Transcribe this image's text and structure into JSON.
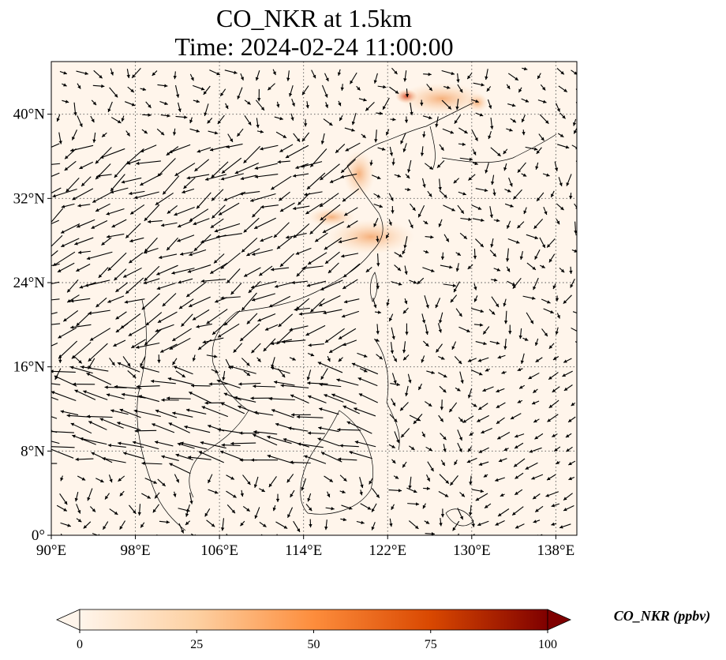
{
  "title": {
    "line1": "CO_NKR at 1.5km",
    "line2": "Time: 2024-02-24 11:00:00"
  },
  "map": {
    "projection": "PlateCarree",
    "lon_range_deg": [
      90,
      140
    ],
    "lat_range_deg": [
      0,
      45
    ],
    "gridlines": "dotted",
    "lat_ticks": [
      "0°",
      "8°N",
      "16°N",
      "24°N",
      "32°N",
      "40°N"
    ],
    "lat_tick_values": [
      0,
      8,
      16,
      24,
      32,
      40
    ],
    "lon_ticks": [
      "90°E",
      "98°E",
      "106°E",
      "114°E",
      "122°E",
      "130°E",
      "138°E"
    ],
    "lon_tick_values": [
      90,
      98,
      106,
      114,
      122,
      130,
      138
    ],
    "field": "CO_NKR",
    "overlay": "wind vectors (quiver)",
    "background_color": "#fff5eb",
    "coastline_color": "#000000",
    "arrow_color": "#000000"
  },
  "colorbar": {
    "label": "CO_NKR (ppbv)",
    "ticks": [
      "0",
      "25",
      "50",
      "75",
      "100"
    ],
    "tick_values": [
      0,
      25,
      50,
      75,
      100
    ],
    "range": [
      0,
      100
    ],
    "extend": "both",
    "colormap_stops": [
      "#fff5eb",
      "#fdd0a2",
      "#fd8d3c",
      "#d94801",
      "#7f0000"
    ]
  }
}
